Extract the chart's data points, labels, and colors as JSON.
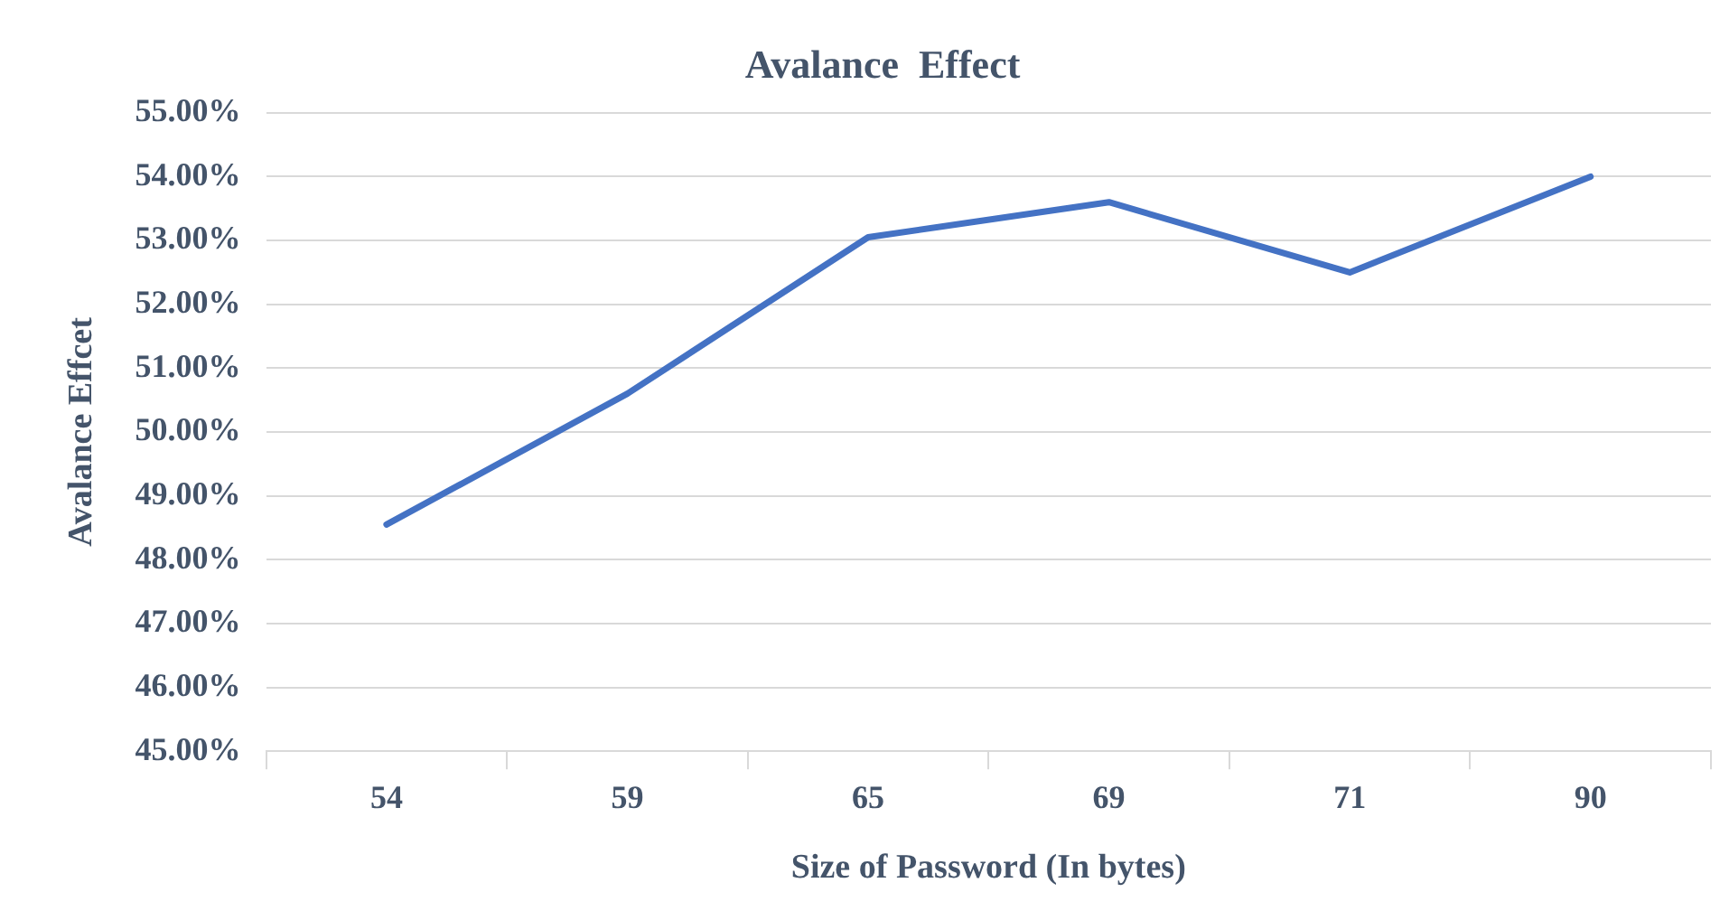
{
  "chart_data": {
    "type": "line",
    "title": "Avalance  Effect",
    "xlabel": "Size of Password (In bytes)",
    "ylabel": "Avalance Effcet",
    "categories": [
      "54",
      "59",
      "65",
      "69",
      "71",
      "90"
    ],
    "series": [
      {
        "color": "#4472c4",
        "values": [
          48.55,
          50.6,
          53.05,
          53.6,
          52.5,
          54.0
        ]
      }
    ],
    "ylim": [
      45,
      55
    ],
    "yticks": [
      {
        "value": 45,
        "label": "45.00%"
      },
      {
        "value": 46,
        "label": "46.00%"
      },
      {
        "value": 47,
        "label": "47.00%"
      },
      {
        "value": 48,
        "label": "48.00%"
      },
      {
        "value": 49,
        "label": "49.00%"
      },
      {
        "value": 50,
        "label": "50.00%"
      },
      {
        "value": 51,
        "label": "51.00%"
      },
      {
        "value": 52,
        "label": "52.00%"
      },
      {
        "value": 53,
        "label": "53.00%"
      },
      {
        "value": 54,
        "label": "54.00%"
      },
      {
        "value": 55,
        "label": "55.00%"
      }
    ],
    "grid": "y",
    "marker": "none"
  }
}
